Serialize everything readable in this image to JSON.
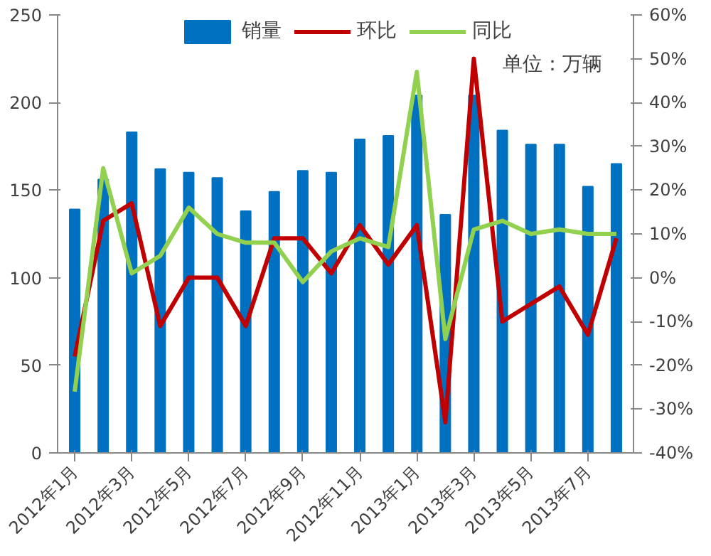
{
  "chart_data": {
    "type": "bar",
    "categories": [
      "2012年1月",
      null,
      "2012年3月",
      null,
      "2012年5月",
      null,
      "2012年7月",
      null,
      "2012年9月",
      null,
      "2012年11月",
      null,
      "2013年1月",
      null,
      "2013年3月",
      null,
      "2013年5月",
      null,
      "2013年7月",
      null
    ],
    "series": [
      {
        "name": "销量",
        "color": "#0070c0",
        "values": [
          139,
          156,
          183,
          162,
          160,
          157,
          138,
          149,
          161,
          160,
          179,
          181,
          204,
          136,
          204,
          184,
          176,
          176,
          152,
          165
        ]
      },
      {
        "name": "环比",
        "type": "line",
        "axis": "y2",
        "color": "#c00000",
        "values": [
          -18,
          13,
          17,
          -11,
          0,
          0,
          -11,
          9,
          9,
          1,
          12,
          3,
          12,
          -33,
          50,
          -10,
          -6,
          -2,
          -13,
          9
        ]
      },
      {
        "name": "同比",
        "type": "line",
        "axis": "y2",
        "color": "#92d050",
        "values": [
          -26,
          25,
          1,
          5,
          16,
          10,
          8,
          8,
          -1,
          6,
          9,
          7,
          47,
          -14,
          11,
          13,
          10,
          11,
          10,
          10
        ]
      }
    ],
    "ylim": [
      0,
      250
    ],
    "yticks": [
      0,
      50,
      100,
      150,
      200,
      250
    ],
    "y2lim": [
      -40,
      60
    ],
    "y2ticks": [
      {
        "value": -40,
        "label": "-40%"
      },
      {
        "value": -30,
        "label": "-30%"
      },
      {
        "value": -20,
        "label": "-20%"
      },
      {
        "value": -10,
        "label": "-10%"
      },
      {
        "value": 0,
        "label": "0%"
      },
      {
        "value": 10,
        "label": "10%"
      },
      {
        "value": 20,
        "label": "20%"
      },
      {
        "value": 30,
        "label": "30%"
      },
      {
        "value": 40,
        "label": "40%"
      },
      {
        "value": 50,
        "label": "50%"
      },
      {
        "value": 60,
        "label": "60%"
      }
    ],
    "annotations": [
      "单位：万辆"
    ],
    "legend": "top",
    "grid": false,
    "marker": "none",
    "line_style": "solid"
  }
}
